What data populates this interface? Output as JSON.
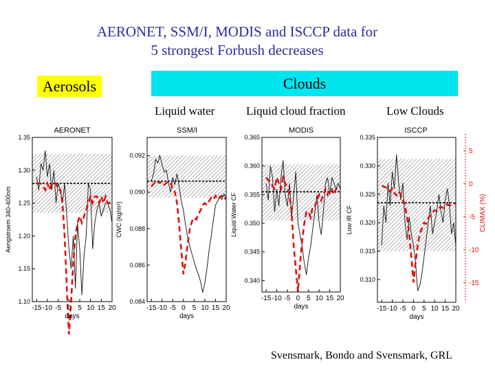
{
  "title_line1": "AERONET, SSM/I, MODIS and ISCCP data for",
  "title_line2": "5 strongest Forbush decreases",
  "aerosols_label": "Aerosols",
  "clouds_label": "Clouds",
  "subtitles": {
    "liquid_water": "Liquid water",
    "liquid_cloud_fraction": "Liquid cloud fraction",
    "low_clouds": "Low Clouds"
  },
  "credit": "Svensmark, Bondo and Svensmark, GRL",
  "colors": {
    "title": "#2c2c9c",
    "climax": "#dd1111",
    "aerosol_bg": "#ffff00",
    "cloud_bg": "#00e5ee"
  },
  "chart_data": [
    {
      "type": "line",
      "title": "AERONET",
      "xlabel": "days",
      "ylabel": "Aengstroem 340-400nm",
      "xlim": [
        -17,
        20
      ],
      "ylim": [
        1.1,
        1.35
      ],
      "xticks": [
        -15,
        -10,
        -5,
        0,
        5,
        10,
        15,
        20
      ],
      "yticks": [
        1.1,
        1.15,
        1.2,
        1.25,
        1.3,
        1.35
      ],
      "ytick_labels": [
        "1.10",
        "1.15",
        "1.20",
        "1.25",
        "1.30",
        "1.35"
      ],
      "band": [
        1.235,
        1.325
      ],
      "mean": 1.28,
      "series": [
        {
          "name": "data",
          "x": [
            -15,
            -14,
            -13,
            -12,
            -11,
            -10,
            -9,
            -8,
            -7,
            -6,
            -5,
            -4,
            -3,
            -2,
            -1,
            0,
            1,
            2,
            3,
            4,
            5,
            6,
            7,
            8,
            9,
            10,
            11,
            12,
            13,
            14,
            15,
            16,
            17,
            18,
            19,
            20
          ],
          "values": [
            1.29,
            1.27,
            1.31,
            1.3,
            1.33,
            1.29,
            1.31,
            1.27,
            1.3,
            1.25,
            1.28,
            1.27,
            1.25,
            1.28,
            1.23,
            1.18,
            1.15,
            1.2,
            1.12,
            1.22,
            1.18,
            1.11,
            1.17,
            1.2,
            1.28,
            1.27,
            1.18,
            1.22,
            1.24,
            1.25,
            1.23,
            1.24,
            1.25,
            1.25,
            1.24,
            1.22
          ]
        },
        {
          "name": "Climax",
          "x": [
            -15,
            -13,
            -11,
            -10,
            -9,
            -8,
            -7,
            -6,
            -5,
            -4,
            -3,
            -2,
            -1,
            0,
            1,
            2,
            3,
            4,
            5,
            6,
            7,
            8,
            9,
            10,
            11,
            12,
            13,
            14,
            15,
            16,
            17,
            18,
            19,
            20
          ],
          "values": [
            1.28,
            1.28,
            1.27,
            1.28,
            1.27,
            1.28,
            1.28,
            1.28,
            1.27,
            1.27,
            1.25,
            1.2,
            1.12,
            1.05,
            1.1,
            1.16,
            1.2,
            1.22,
            1.23,
            1.22,
            1.23,
            1.24,
            1.25,
            1.26,
            1.25,
            1.26,
            1.26,
            1.25,
            1.26,
            1.25,
            1.26,
            1.25,
            1.25,
            1.25
          ]
        }
      ]
    },
    {
      "type": "line",
      "title": "SSM/I",
      "xlabel": "days",
      "ylabel": "CWC (kg/m²)",
      "xlim": [
        -17,
        20
      ],
      "ylim": [
        0.084,
        0.093
      ],
      "xticks": [
        -15,
        -10,
        -5,
        0,
        5,
        10,
        15,
        20
      ],
      "yticks": [
        0.084,
        0.086,
        0.088,
        0.09,
        0.092
      ],
      "ytick_labels": [
        "0.084",
        "0.086",
        "0.088",
        "0.090",
        "0.092"
      ],
      "band": [
        0.0897,
        0.092
      ],
      "mean": 0.0906,
      "series": [
        {
          "name": "data",
          "x": [
            -15,
            -14,
            -13,
            -12,
            -11,
            -10,
            -9,
            -8,
            -7,
            -6,
            -5,
            -4,
            -3,
            -2,
            -1,
            0,
            1,
            2,
            3,
            4,
            5,
            6,
            7,
            8,
            9,
            10,
            11,
            12,
            13,
            14,
            15,
            16,
            17,
            18,
            19,
            20
          ],
          "values": [
            0.0906,
            0.091,
            0.0918,
            0.0916,
            0.092,
            0.0915,
            0.0911,
            0.0912,
            0.0905,
            0.09,
            0.0908,
            0.0904,
            0.091,
            0.0903,
            0.0895,
            0.089,
            0.0882,
            0.0875,
            0.087,
            0.0866,
            0.0862,
            0.0858,
            0.0855,
            0.0851,
            0.0845,
            0.085,
            0.0858,
            0.0868,
            0.0876,
            0.0885,
            0.0893,
            0.0895,
            0.0898,
            0.0896,
            0.0899,
            0.0896
          ]
        },
        {
          "name": "Climax",
          "x": [
            -15,
            -13,
            -11,
            -10,
            -9,
            -8,
            -7,
            -6,
            -5,
            -4,
            -3,
            -2,
            -1,
            0,
            1,
            2,
            3,
            4,
            5,
            6,
            7,
            8,
            9,
            10,
            11,
            12,
            13,
            14,
            15,
            16,
            17,
            18,
            19,
            20
          ],
          "values": [
            0.0903,
            0.0906,
            0.0905,
            0.0906,
            0.0904,
            0.0905,
            0.0906,
            0.0905,
            0.0902,
            0.09,
            0.0894,
            0.0882,
            0.0868,
            0.0855,
            0.0862,
            0.0872,
            0.088,
            0.0884,
            0.0886,
            0.0885,
            0.0888,
            0.089,
            0.0893,
            0.0894,
            0.0893,
            0.0895,
            0.0897,
            0.0896,
            0.0898,
            0.0896,
            0.0897,
            0.0898,
            0.0896,
            0.0897
          ]
        }
      ]
    },
    {
      "type": "line",
      "title": "MODIS",
      "xlabel": "days",
      "ylabel": "Liquid Water CF",
      "xlim": [
        -17,
        20
      ],
      "ylim": [
        0.338,
        0.365
      ],
      "xticks": [
        -15,
        -10,
        -5,
        0,
        5,
        10,
        15,
        20
      ],
      "yticks": [
        0.34,
        0.345,
        0.35,
        0.355,
        0.36,
        0.365
      ],
      "ytick_labels": [
        "0.340",
        "0.345",
        "0.350",
        "0.355",
        "0.360",
        "0.365"
      ],
      "band": [
        0.3505,
        0.3603
      ],
      "mean": 0.3555,
      "series": [
        {
          "name": "data",
          "x": [
            -15,
            -14,
            -13,
            -12,
            -11,
            -10,
            -9,
            -8,
            -7,
            -6,
            -5,
            -4,
            -3,
            -2,
            -1,
            0,
            1,
            2,
            3,
            4,
            5,
            6,
            7,
            8,
            9,
            10,
            11,
            12,
            13,
            14,
            15,
            16,
            17,
            18,
            19,
            20
          ],
          "values": [
            0.357,
            0.354,
            0.36,
            0.358,
            0.352,
            0.356,
            0.353,
            0.358,
            0.361,
            0.355,
            0.353,
            0.357,
            0.351,
            0.355,
            0.359,
            0.35,
            0.348,
            0.346,
            0.343,
            0.341,
            0.344,
            0.346,
            0.349,
            0.352,
            0.355,
            0.35,
            0.348,
            0.352,
            0.357,
            0.358,
            0.355,
            0.358,
            0.357,
            0.356,
            0.357,
            0.356
          ]
        },
        {
          "name": "Climax",
          "x": [
            -15,
            -13,
            -11,
            -10,
            -9,
            -8,
            -7,
            -6,
            -5,
            -4,
            -3,
            -2,
            -1,
            0,
            1,
            2,
            3,
            4,
            5,
            6,
            7,
            8,
            9,
            10,
            11,
            12,
            13,
            14,
            15,
            16,
            17,
            18,
            19,
            20
          ],
          "values": [
            0.358,
            0.357,
            0.356,
            0.358,
            0.357,
            0.356,
            0.358,
            0.357,
            0.356,
            0.355,
            0.352,
            0.346,
            0.342,
            0.338,
            0.343,
            0.347,
            0.35,
            0.352,
            0.352,
            0.351,
            0.353,
            0.353,
            0.354,
            0.355,
            0.354,
            0.355,
            0.356,
            0.355,
            0.356,
            0.356,
            0.355,
            0.356,
            0.356,
            0.356
          ]
        }
      ]
    },
    {
      "type": "line",
      "title": "ISCCP",
      "xlabel": "days",
      "ylabel": "Low IR CF",
      "y2label": "CLIMAX (%)",
      "xlim": [
        -17,
        20
      ],
      "ylim": [
        0.306,
        0.335
      ],
      "xticks": [
        -15,
        -10,
        -5,
        0,
        5,
        10,
        15,
        20
      ],
      "yticks": [
        0.31,
        0.315,
        0.32,
        0.325,
        0.33,
        0.335
      ],
      "ytick_labels": [
        "0.310",
        "0.315",
        "0.320",
        "0.325",
        "0.330",
        "0.335"
      ],
      "y2lim": [
        -18,
        7
      ],
      "y2ticks": [
        5,
        0,
        -5,
        -10,
        -15
      ],
      "y2tick_labels": [
        "5",
        "0",
        "-5",
        "-10",
        "-15"
      ],
      "band": [
        0.315,
        0.3312
      ],
      "mean": 0.3235,
      "series": [
        {
          "name": "data",
          "x": [
            -15,
            -14,
            -13,
            -12,
            -11,
            -10,
            -9,
            -8,
            -7,
            -6,
            -5,
            -4,
            -3,
            -2,
            -1,
            0,
            1,
            2,
            3,
            4,
            5,
            6,
            7,
            8,
            9,
            10,
            11,
            12,
            13,
            14,
            15,
            16,
            17,
            18,
            19,
            20
          ],
          "values": [
            0.316,
            0.323,
            0.32,
            0.327,
            0.323,
            0.329,
            0.326,
            0.332,
            0.327,
            0.324,
            0.327,
            0.32,
            0.317,
            0.321,
            0.318,
            0.316,
            0.313,
            0.308,
            0.309,
            0.311,
            0.314,
            0.317,
            0.32,
            0.323,
            0.318,
            0.32,
            0.322,
            0.325,
            0.322,
            0.32,
            0.324,
            0.326,
            0.323,
            0.318,
            0.32,
            0.316
          ]
        },
        {
          "name": "Climax",
          "x": [
            -15,
            -13,
            -11,
            -10,
            -9,
            -8,
            -7,
            -6,
            -5,
            -4,
            -3,
            -2,
            -1,
            0,
            1,
            2,
            3,
            4,
            5,
            6,
            7,
            8,
            9,
            10,
            11,
            12,
            13,
            14,
            15,
            16,
            17,
            18,
            19,
            20
          ],
          "values": [
            0.3265,
            0.3262,
            0.3255,
            0.326,
            0.3252,
            0.3248,
            0.3255,
            0.325,
            0.324,
            0.323,
            0.321,
            0.318,
            0.314,
            0.3095,
            0.313,
            0.316,
            0.318,
            0.319,
            0.32,
            0.3198,
            0.3208,
            0.3212,
            0.3218,
            0.3222,
            0.322,
            0.3225,
            0.3228,
            0.3226,
            0.323,
            0.3232,
            0.323,
            0.3233,
            0.3235,
            0.3233
          ]
        }
      ]
    }
  ]
}
